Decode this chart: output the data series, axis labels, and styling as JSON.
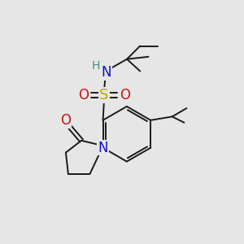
{
  "background_color": "#e6e6e6",
  "figsize": [
    3.0,
    3.0
  ],
  "dpi": 100,
  "bond_color": "#1a1a1a",
  "bond_width": 1.4,
  "colors": {
    "C": "#1a1a1a",
    "H": "#4a8a8a",
    "N": "#1111cc",
    "O": "#cc1111",
    "S": "#bbaa00"
  }
}
